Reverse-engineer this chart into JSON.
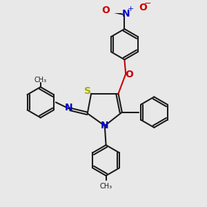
{
  "bg_color": "#e8e8e8",
  "S_color": "#aaaa00",
  "N_color": "#0000cc",
  "O_color": "#cc0000",
  "C_color": "#1a1a1a",
  "lw": 1.5,
  "fs": 9.0,
  "xlim": [
    -3.8,
    3.8
  ],
  "ylim": [
    -4.0,
    3.8
  ]
}
